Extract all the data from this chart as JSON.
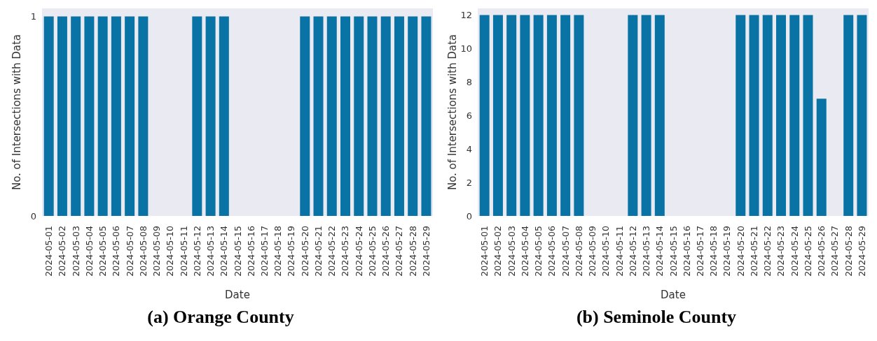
{
  "chart_data": [
    {
      "type": "bar",
      "title": "(a) Orange County",
      "xlabel": "Date",
      "ylabel": "No. of Intersections with Data",
      "categories": [
        "2024-05-01",
        "2024-05-02",
        "2024-05-03",
        "2024-05-04",
        "2024-05-05",
        "2024-05-06",
        "2024-05-07",
        "2024-05-08",
        "2024-05-09",
        "2024-05-10",
        "2024-05-11",
        "2024-05-12",
        "2024-05-13",
        "2024-05-14",
        "2024-05-15",
        "2024-05-16",
        "2024-05-17",
        "2024-05-18",
        "2024-05-19",
        "2024-05-20",
        "2024-05-21",
        "2024-05-22",
        "2024-05-23",
        "2024-05-24",
        "2024-05-25",
        "2024-05-26",
        "2024-05-27",
        "2024-05-28",
        "2024-05-29"
      ],
      "values": [
        1,
        1,
        1,
        1,
        1,
        1,
        1,
        1,
        0,
        0,
        0,
        1,
        1,
        1,
        0,
        0,
        0,
        0,
        0,
        1,
        1,
        1,
        1,
        1,
        1,
        1,
        1,
        1,
        1
      ],
      "color": "#0a73a5",
      "ylim": [
        0,
        1.04
      ],
      "yticks": [
        0,
        1
      ]
    },
    {
      "type": "bar",
      "title": "(b) Seminole County",
      "xlabel": "Date",
      "ylabel": "No. of Intersections with Data",
      "categories": [
        "2024-05-01",
        "2024-05-02",
        "2024-05-03",
        "2024-05-04",
        "2024-05-05",
        "2024-05-06",
        "2024-05-07",
        "2024-05-08",
        "2024-05-09",
        "2024-05-10",
        "2024-05-11",
        "2024-05-12",
        "2024-05-13",
        "2024-05-14",
        "2024-05-15",
        "2024-05-16",
        "2024-05-17",
        "2024-05-18",
        "2024-05-19",
        "2024-05-20",
        "2024-05-21",
        "2024-05-22",
        "2024-05-23",
        "2024-05-24",
        "2024-05-25",
        "2024-05-26",
        "2024-05-27",
        "2024-05-28",
        "2024-05-29"
      ],
      "values": [
        12,
        12,
        12,
        12,
        12,
        12,
        12,
        12,
        0,
        0,
        0,
        12,
        12,
        12,
        0,
        0,
        0,
        0,
        0,
        12,
        12,
        12,
        12,
        12,
        12,
        7,
        0,
        12,
        12
      ],
      "color": "#0a73a5",
      "ylim": [
        0,
        12.4
      ],
      "yticks": [
        0,
        2,
        4,
        6,
        8,
        10,
        12
      ]
    }
  ]
}
